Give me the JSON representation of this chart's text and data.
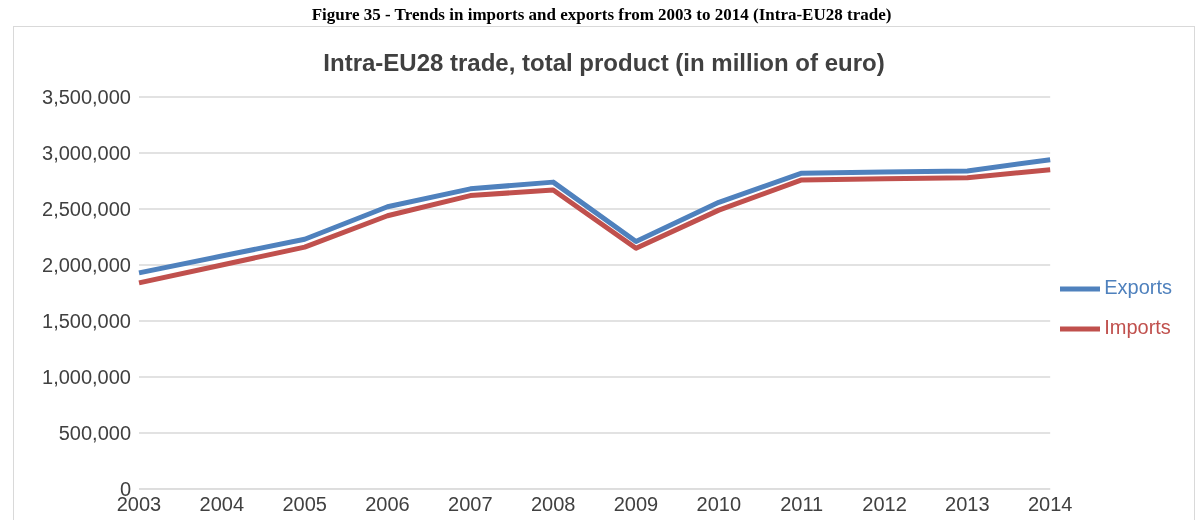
{
  "chart_data": {
    "type": "line",
    "title": "Figure 35 - Trends in imports and exports from 2003 to 2014 (Intra-EU28 trade)",
    "subtitle": "Intra-EU28 trade, total product (in million of euro)",
    "categories": [
      "2003",
      "2004",
      "2005",
      "2006",
      "2007",
      "2008",
      "2009",
      "2010",
      "2011",
      "2012",
      "2013",
      "2014"
    ],
    "series": [
      {
        "name": "Exports",
        "color": "#4f81bd",
        "values": [
          1930000,
          2080000,
          2230000,
          2520000,
          2680000,
          2740000,
          2210000,
          2560000,
          2820000,
          2830000,
          2840000,
          2940000
        ]
      },
      {
        "name": "Imports",
        "color": "#c0504d",
        "values": [
          1840000,
          2000000,
          2160000,
          2440000,
          2620000,
          2670000,
          2150000,
          2490000,
          2760000,
          2770000,
          2780000,
          2850000
        ]
      }
    ],
    "ylim": [
      0,
      3500000
    ],
    "yticks": [
      0,
      {
        "value": 500000,
        "label": "500,000"
      },
      {
        "value": 1000000,
        "label": "1,000,000"
      },
      {
        "value": 1500000,
        "label": "1,500,000"
      },
      {
        "value": 2000000,
        "label": "2,000,000"
      },
      {
        "value": 2500000,
        "label": "2,500,000"
      },
      {
        "value": 3000000,
        "label": "3,000,000"
      },
      {
        "value": 3500000,
        "label": "3,500,000"
      }
    ],
    "grid": "y",
    "legend": "right",
    "marker": "none",
    "line_style": "solid"
  }
}
